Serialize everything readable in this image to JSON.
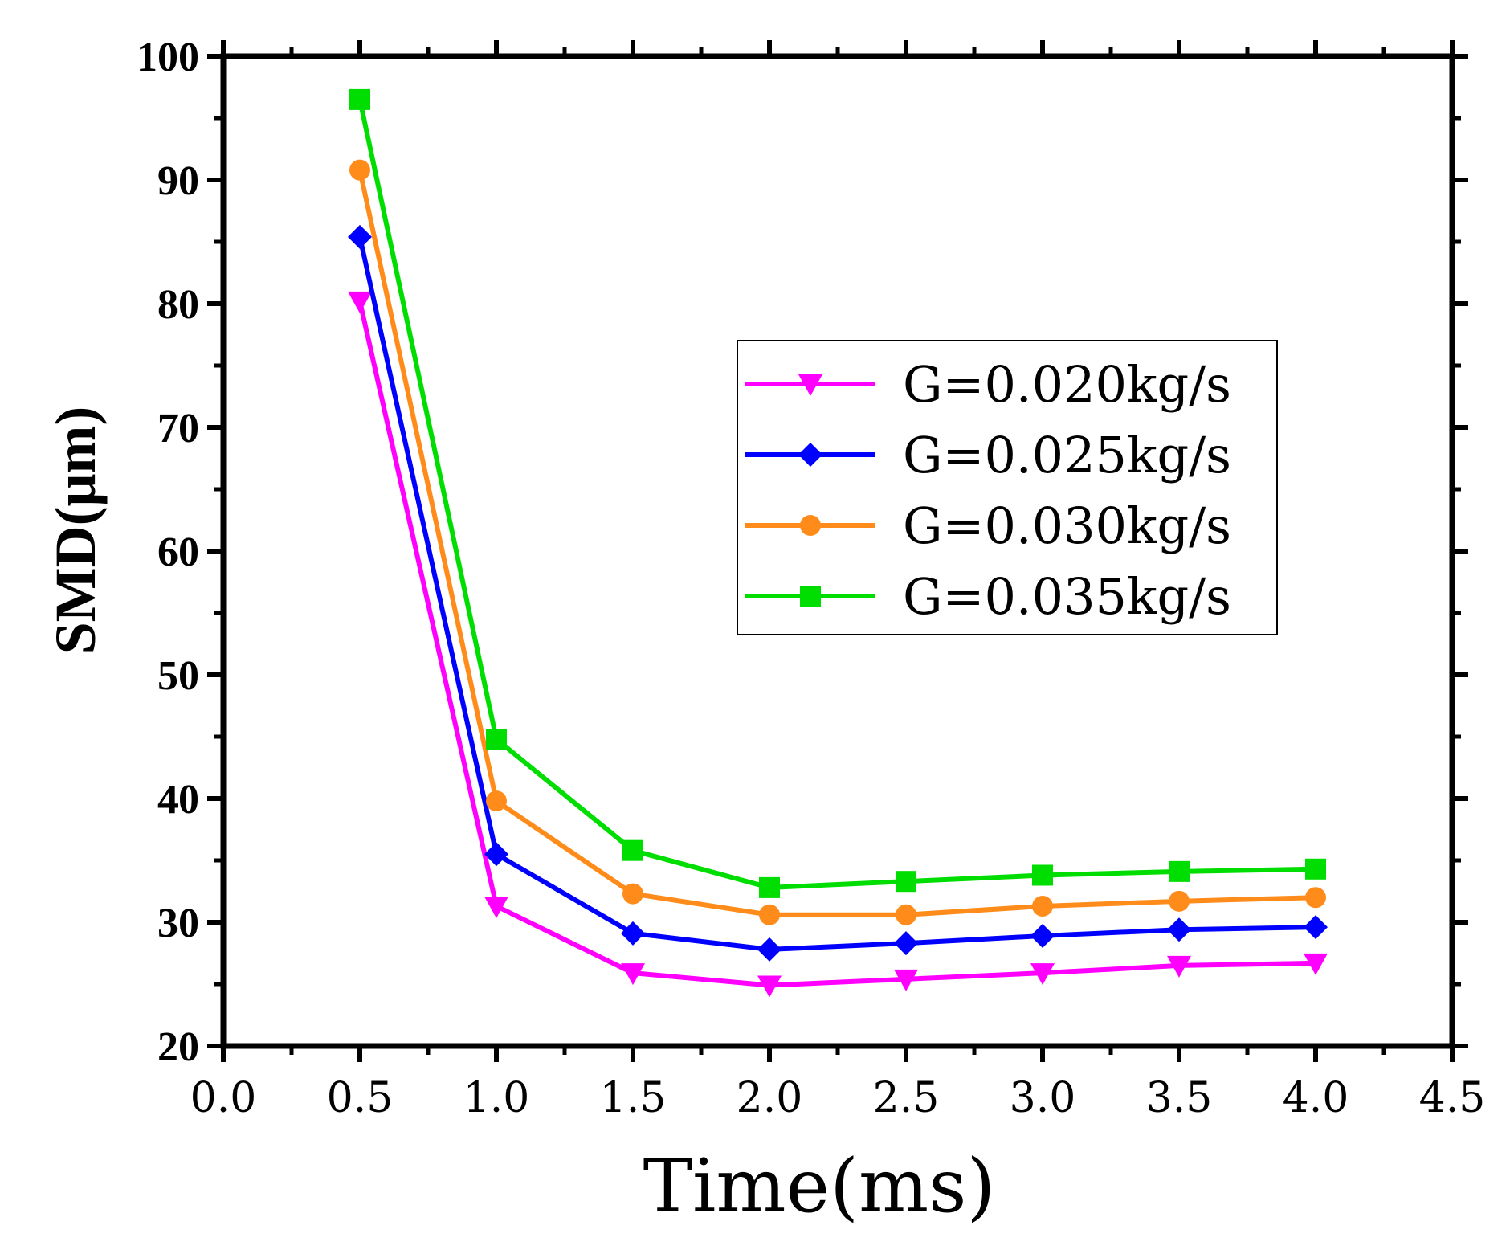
{
  "chart_data": {
    "type": "line",
    "title": "",
    "xlabel": "Time(ms)",
    "ylabel": "SMD(μm)",
    "xlim": [
      0.0,
      4.5
    ],
    "ylim": [
      20,
      100
    ],
    "xticks": [
      "0.0",
      "0.5",
      "1.0",
      "1.5",
      "2.0",
      "2.5",
      "3.0",
      "3.5",
      "4.0",
      "4.5"
    ],
    "yticks": [
      "20",
      "30",
      "40",
      "50",
      "60",
      "70",
      "80",
      "90",
      "100"
    ],
    "grid": false,
    "legend_position": "center-right",
    "x": [
      0.5,
      1.0,
      1.5,
      2.0,
      2.5,
      3.0,
      3.5,
      4.0
    ],
    "series": [
      {
        "name": "G=0.020kg/s",
        "color": "#ff00ff",
        "marker": "triangle-down",
        "values": [
          80.2,
          31.3,
          25.9,
          24.9,
          25.4,
          25.9,
          26.5,
          26.7
        ]
      },
      {
        "name": "G=0.025kg/s",
        "color": "#0000ff",
        "marker": "diamond",
        "values": [
          85.4,
          35.5,
          29.1,
          27.8,
          28.3,
          28.9,
          29.4,
          29.6
        ]
      },
      {
        "name": "G=0.030kg/s",
        "color": "#ff8c1a",
        "marker": "circle",
        "values": [
          90.8,
          39.8,
          32.3,
          30.6,
          30.6,
          31.3,
          31.7,
          32.0
        ]
      },
      {
        "name": "G=0.035kg/s",
        "color": "#00dd00",
        "marker": "square",
        "values": [
          96.5,
          44.8,
          35.8,
          32.8,
          33.3,
          33.8,
          34.1,
          34.3
        ]
      }
    ]
  }
}
